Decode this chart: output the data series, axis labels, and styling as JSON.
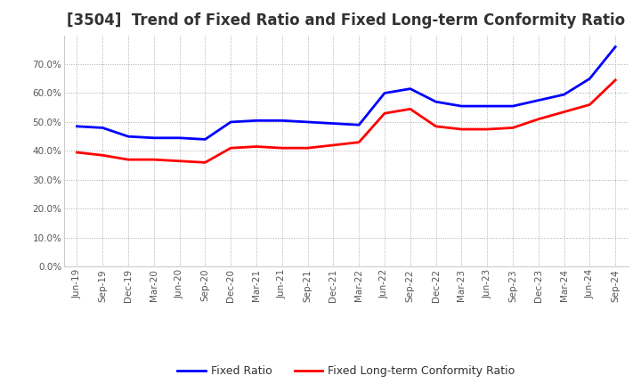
{
  "title": "[3504]  Trend of Fixed Ratio and Fixed Long-term Conformity Ratio",
  "x_labels": [
    "Jun-19",
    "Sep-19",
    "Dec-19",
    "Mar-20",
    "Jun-20",
    "Sep-20",
    "Dec-20",
    "Mar-21",
    "Jun-21",
    "Sep-21",
    "Dec-21",
    "Mar-22",
    "Jun-22",
    "Sep-22",
    "Dec-22",
    "Mar-23",
    "Jun-23",
    "Sep-23",
    "Dec-23",
    "Mar-24",
    "Jun-24",
    "Sep-24"
  ],
  "fixed_ratio": [
    48.5,
    48.0,
    45.0,
    44.5,
    44.5,
    44.0,
    50.0,
    50.5,
    50.5,
    50.0,
    49.5,
    49.0,
    60.0,
    61.5,
    57.0,
    55.5,
    55.5,
    55.5,
    57.5,
    59.5,
    65.0,
    76.0
  ],
  "fixed_lt_ratio": [
    39.5,
    38.5,
    37.0,
    37.0,
    36.5,
    36.0,
    41.0,
    41.5,
    41.0,
    41.0,
    42.0,
    43.0,
    53.0,
    54.5,
    48.5,
    47.5,
    47.5,
    48.0,
    51.0,
    53.5,
    56.0,
    64.5
  ],
  "fixed_ratio_color": "#0000FF",
  "fixed_lt_ratio_color": "#FF0000",
  "ylim": [
    0.0,
    80.0
  ],
  "yticks": [
    0.0,
    10.0,
    20.0,
    30.0,
    40.0,
    50.0,
    60.0,
    70.0
  ],
  "bg_color": "#FFFFFF",
  "plot_bg_color": "#FFFFFF",
  "grid_color": "#AAAAAA",
  "legend_fixed": "Fixed Ratio",
  "legend_lt": "Fixed Long-term Conformity Ratio",
  "title_fontsize": 12,
  "tick_fontsize": 7.5,
  "line_width": 2.0
}
